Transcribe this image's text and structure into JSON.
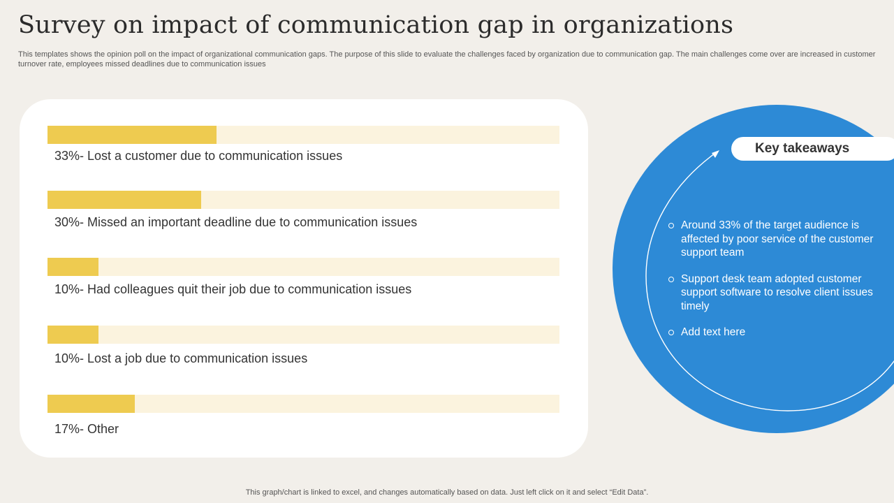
{
  "header": {
    "title": "Survey on impact of communication gap in organizations",
    "subtitle": "This templates shows the opinion poll on the impact of organizational communication gaps. The purpose of this slide to evaluate the challenges faced by organization due to  communication gap. The main challenges come over are increased in customer turnover rate, employees missed deadlines due to communication  issues"
  },
  "chart_data": {
    "type": "bar",
    "orientation": "horizontal",
    "title": "",
    "xlabel": "",
    "ylabel": "",
    "xlim": [
      0,
      100
    ],
    "grid": false,
    "legend": "none",
    "categories": [
      "Lost a customer due to communication issues",
      "Missed an important deadline due to communication issues",
      "Had colleagues quit their job due to communication issues",
      "Lost a job due to communication issues",
      "Other"
    ],
    "values": [
      33,
      30,
      10,
      10,
      17
    ],
    "labels": [
      "33%- Lost a customer due to communication issues",
      "30%- Missed an important deadline due to communication issues",
      "10%- Had colleagues quit their job due to communication issues",
      "10%- Lost a job due to communication issues",
      "17%- Other"
    ],
    "colors": {
      "fill": "#eecb50",
      "track": "#fbf3de"
    }
  },
  "takeaways": {
    "title": "Key takeaways",
    "items": [
      "Around 33% of the target audience is affected by poor service of the customer support team",
      "Support desk team adopted customer support software to resolve client issues timely",
      "Add text here"
    ],
    "colors": {
      "circle": "#2d8ad6"
    }
  },
  "footer": {
    "note": "This graph/chart is linked to excel,  and changes automatically based on data. Just left click on it and select “Edit Data”."
  }
}
